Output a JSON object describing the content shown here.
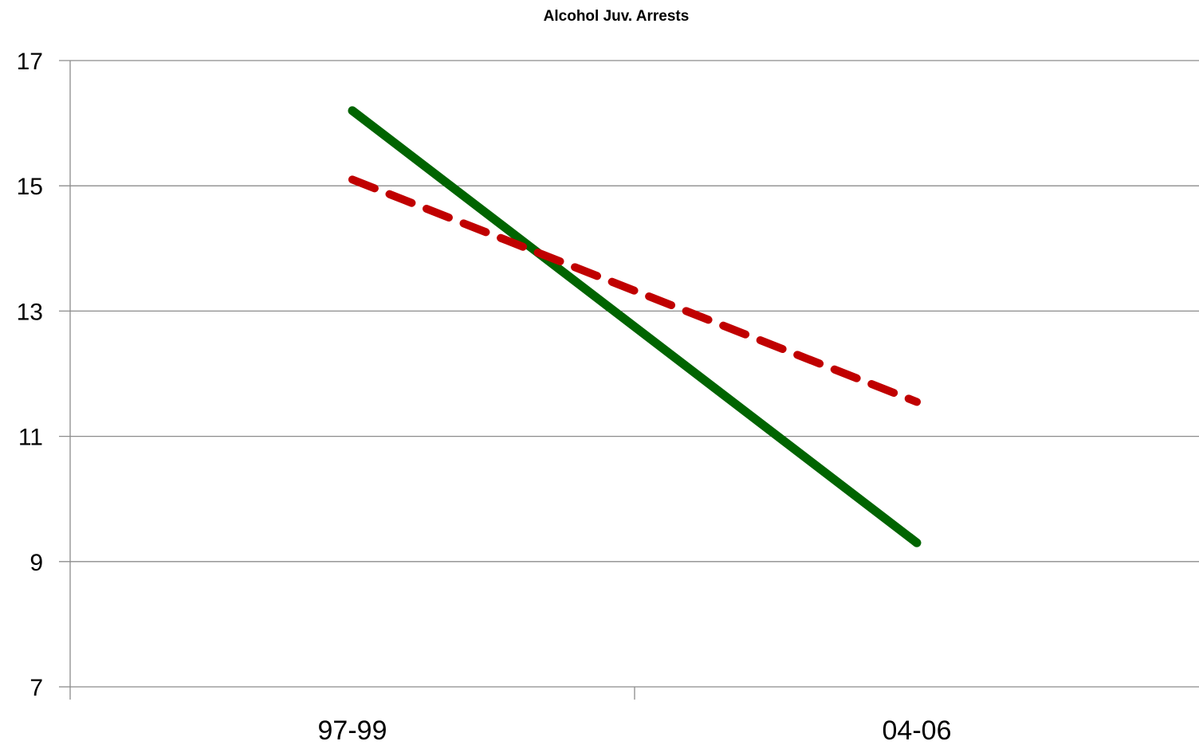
{
  "chart_data": {
    "type": "line",
    "title": "Alcohol Juv. Arrests",
    "xlabel": "",
    "ylabel": "",
    "categories": [
      "97-99",
      "04-06"
    ],
    "ylim": [
      7,
      17
    ],
    "yticks": [
      7,
      9,
      11,
      13,
      15,
      17
    ],
    "grid": true,
    "legend": "none",
    "series": [
      {
        "values": [
          16.2,
          9.3
        ],
        "color": "#006400",
        "style": "solid"
      },
      {
        "values": [
          15.1,
          11.55
        ],
        "color": "#c00000",
        "style": "dashed"
      }
    ]
  }
}
